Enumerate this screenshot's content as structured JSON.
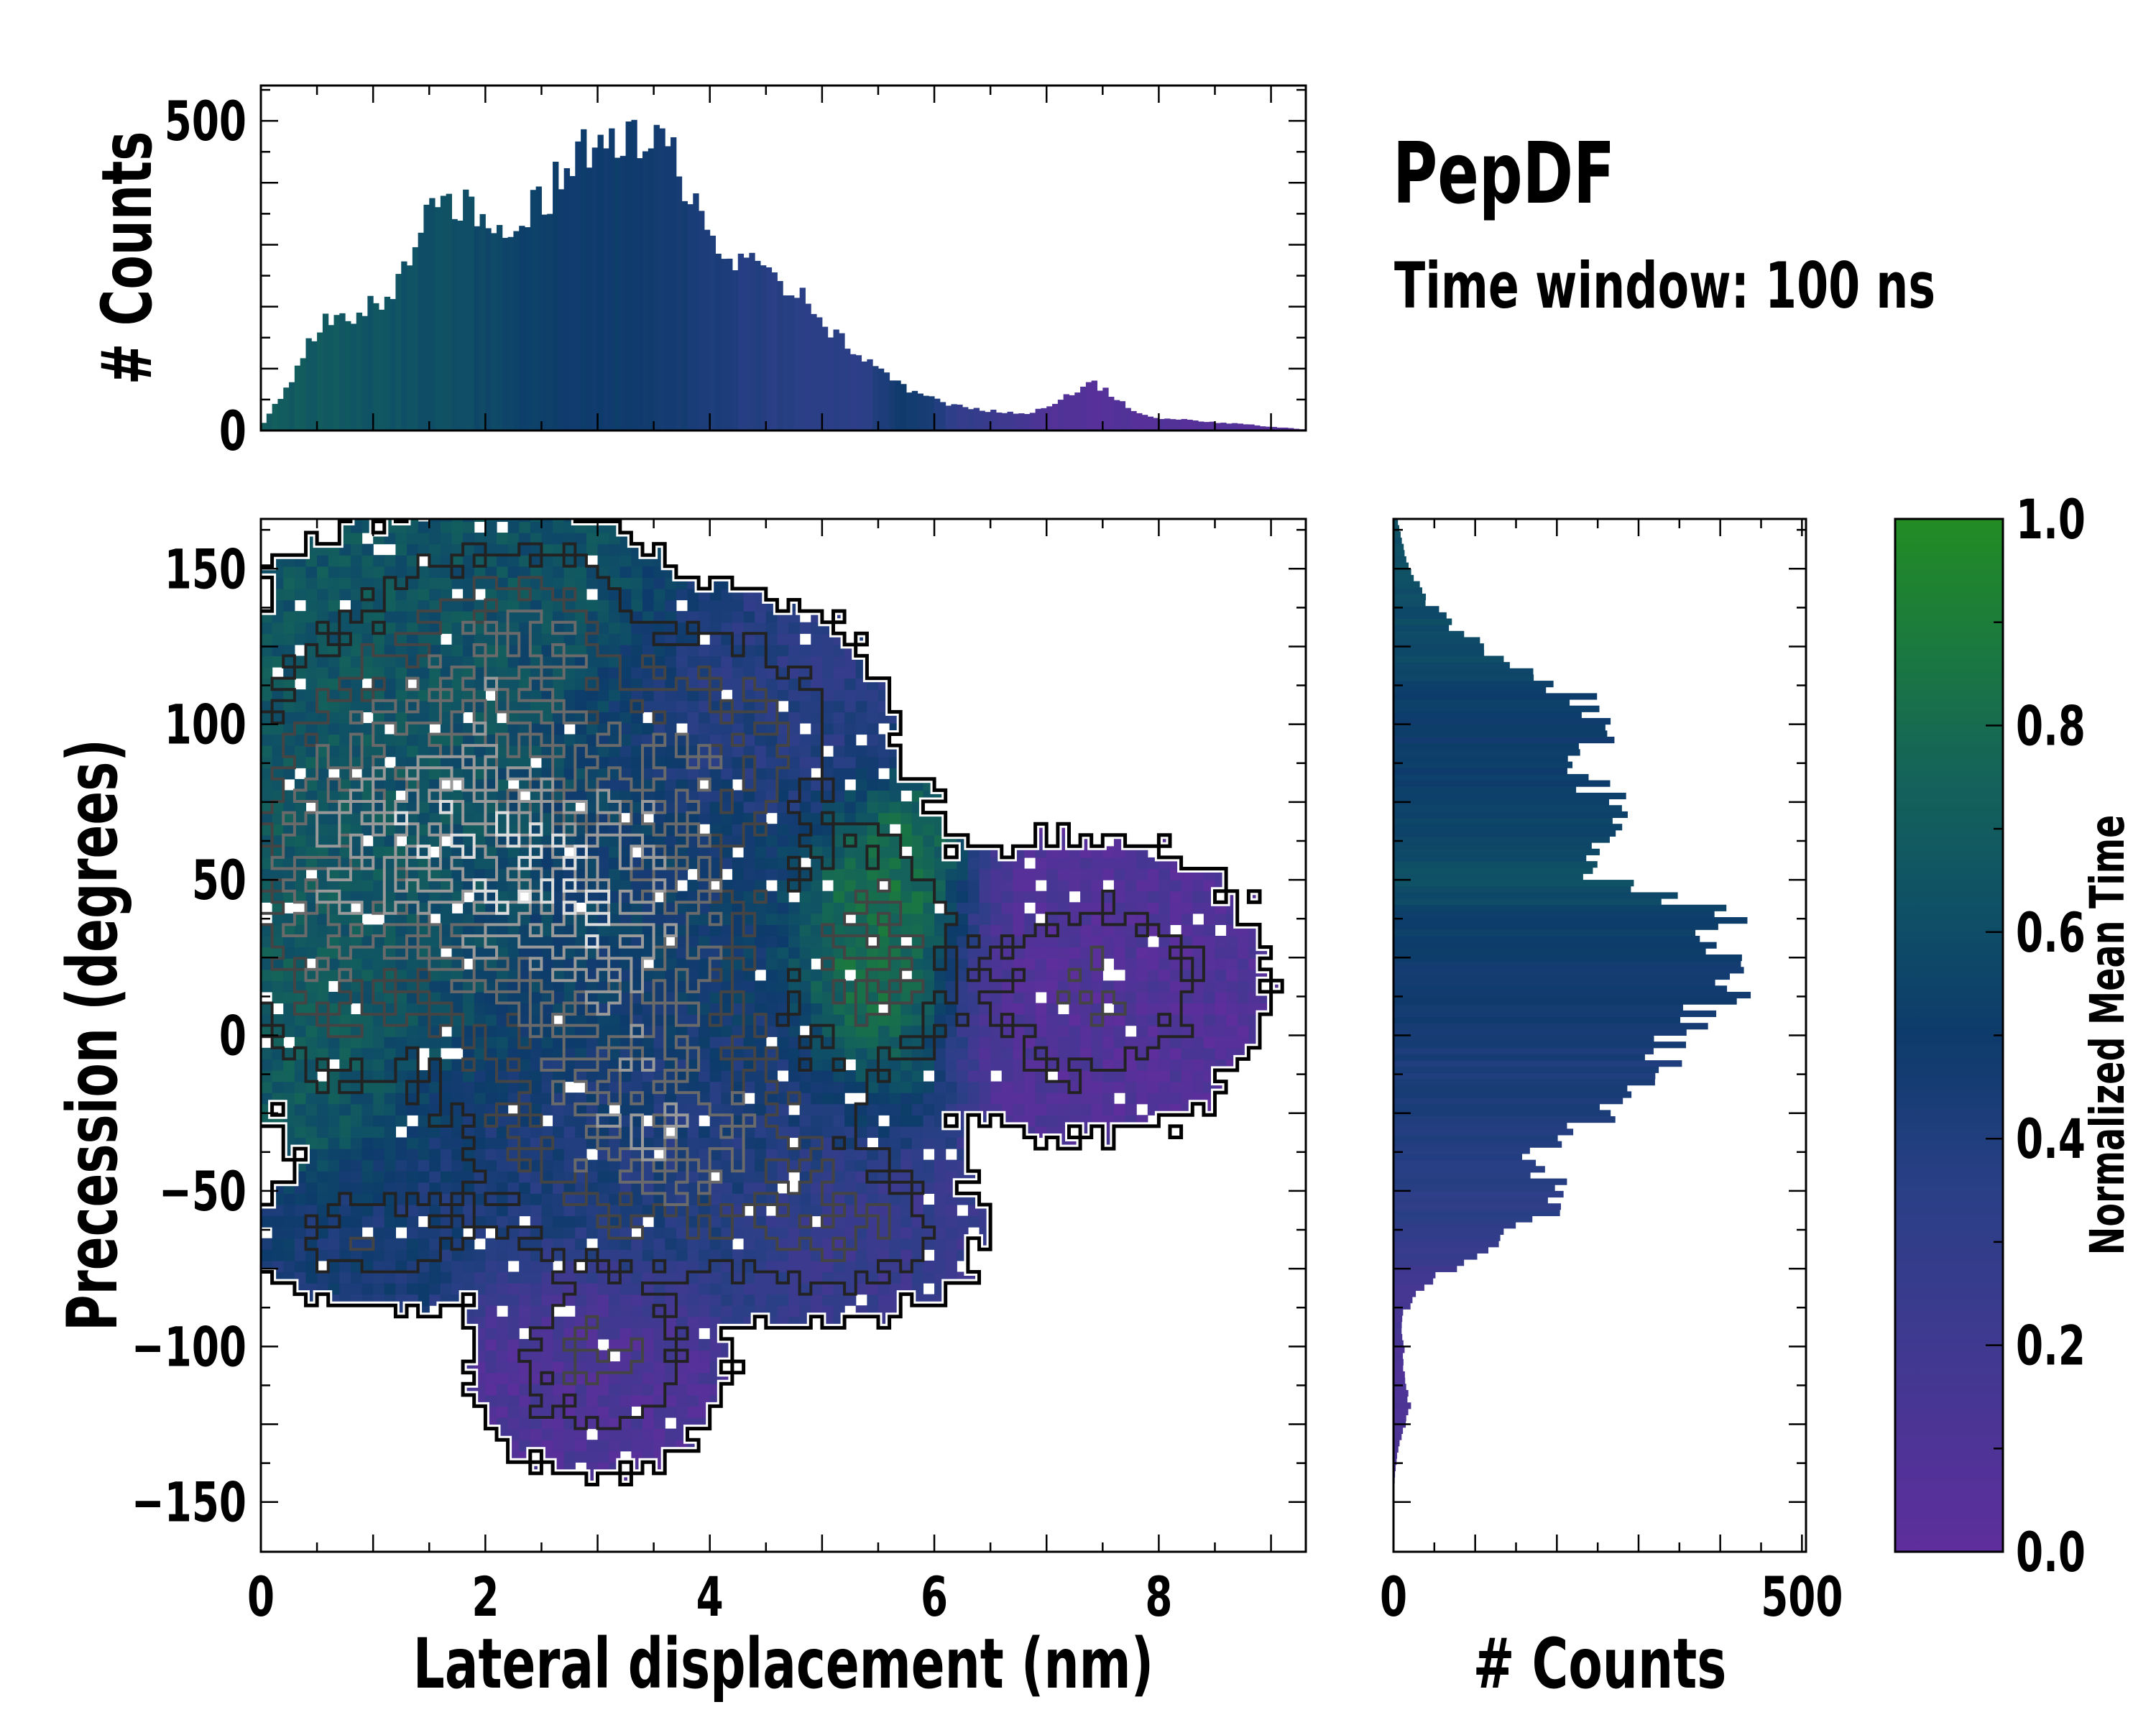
{
  "title": "PepDF",
  "subtitle": "Time window: 100 ns",
  "colormap": [
    [
      0.0,
      "#5e2e9c"
    ],
    [
      0.2,
      "#3f3990"
    ],
    [
      0.35,
      "#2a3f86"
    ],
    [
      0.5,
      "#0d3b6b"
    ],
    [
      0.62,
      "#0f5066"
    ],
    [
      0.75,
      "#14635a"
    ],
    [
      0.88,
      "#1b7a3e"
    ],
    [
      1.0,
      "#238c24"
    ]
  ],
  "chart_data": [
    {
      "type": "heatmap",
      "name": "main",
      "xlabel": "Lateral displacement (nm)",
      "ylabel": "Precession (degrees)",
      "xlim": [
        0,
        9.31
      ],
      "ylim": [
        -166,
        166
      ],
      "xticks": [
        0,
        2,
        4,
        6,
        8
      ],
      "xtick_labels": [
        "0",
        "2",
        "4",
        "6",
        "8"
      ],
      "yticks": [
        150,
        100,
        50,
        0,
        -50,
        -100,
        -150
      ],
      "ytick_labels": [
        "150",
        "100",
        "50",
        "0",
        "−50",
        "−100",
        "−150"
      ],
      "cell": [
        0.1,
        3.6
      ],
      "color_value": "normalized mean time",
      "density_components": [
        {
          "x": 1.5,
          "y": 70,
          "sx": 0.9,
          "sy": 42,
          "w": 1.0,
          "t": 0.66
        },
        {
          "x": 3.2,
          "y": 40,
          "sx": 0.9,
          "sy": 38,
          "w": 1.0,
          "t": 0.5
        },
        {
          "x": 2.4,
          "y": 130,
          "sx": 0.6,
          "sy": 18,
          "w": 0.55,
          "t": 0.62
        },
        {
          "x": 4.2,
          "y": 100,
          "sx": 0.7,
          "sy": 20,
          "w": 0.45,
          "t": 0.33
        },
        {
          "x": 5.5,
          "y": 28,
          "sx": 0.4,
          "sy": 24,
          "w": 0.55,
          "t": 0.88
        },
        {
          "x": 7.4,
          "y": 15,
          "sx": 0.8,
          "sy": 24,
          "w": 0.45,
          "t": 0.08
        },
        {
          "x": 3.0,
          "y": -105,
          "sx": 0.55,
          "sy": 18,
          "w": 0.5,
          "t": 0.1
        },
        {
          "x": 3.6,
          "y": -35,
          "sx": 1.0,
          "sy": 24,
          "w": 0.8,
          "t": 0.4
        },
        {
          "x": 1.0,
          "y": -65,
          "sx": 0.6,
          "sy": 11,
          "w": 0.4,
          "t": 0.45
        },
        {
          "x": 5.2,
          "y": -62,
          "sx": 0.6,
          "sy": 14,
          "w": 0.45,
          "t": 0.22
        },
        {
          "x": 0.5,
          "y": 40,
          "sx": 0.4,
          "sy": 35,
          "w": 0.5,
          "t": 0.7
        }
      ],
      "contour_levels": [
        {
          "level": 0.06,
          "color": "#000000"
        },
        {
          "level": 0.25,
          "color": "#222222"
        },
        {
          "level": 0.5,
          "color": "#444444"
        },
        {
          "level": 0.8,
          "color": "#6a6a6a"
        },
        {
          "level": 1.1,
          "color": "#999999"
        },
        {
          "level": 1.4,
          "color": "#dddddd"
        }
      ]
    },
    {
      "type": "bar",
      "name": "top-histogram",
      "ylabel": "# Counts",
      "xlim": [
        0,
        9.31
      ],
      "ylim": [
        0,
        557
      ],
      "yticks": [
        0,
        500
      ],
      "ytick_labels": [
        "0",
        "500"
      ],
      "bin_width": 0.05,
      "x": [
        0.0,
        0.2,
        0.4,
        0.6,
        0.8,
        1.0,
        1.2,
        1.4,
        1.6,
        1.8,
        2.0,
        2.2,
        2.4,
        2.6,
        2.8,
        3.0,
        3.2,
        3.4,
        3.6,
        3.8,
        4.0,
        4.2,
        4.4,
        4.6,
        4.8,
        5.0,
        5.2,
        5.4,
        5.6,
        5.8,
        6.0,
        6.2,
        6.4,
        6.6,
        6.8,
        7.0,
        7.2,
        7.4,
        7.6,
        7.8,
        8.0,
        8.2,
        8.4,
        8.6,
        8.8,
        9.0,
        9.3
      ],
      "values": [
        5,
        60,
        130,
        180,
        190,
        200,
        240,
        300,
        385,
        360,
        330,
        300,
        350,
        390,
        430,
        490,
        450,
        460,
        465,
        400,
        320,
        270,
        260,
        240,
        220,
        180,
        140,
        110,
        90,
        60,
        50,
        40,
        35,
        30,
        25,
        40,
        60,
        78,
        55,
        30,
        20,
        18,
        15,
        12,
        10,
        6,
        2
      ],
      "mean_time": [
        0.7,
        0.7,
        0.68,
        0.68,
        0.66,
        0.65,
        0.64,
        0.63,
        0.62,
        0.6,
        0.58,
        0.55,
        0.53,
        0.52,
        0.5,
        0.5,
        0.5,
        0.48,
        0.47,
        0.45,
        0.42,
        0.4,
        0.38,
        0.36,
        0.35,
        0.34,
        0.33,
        0.35,
        0.45,
        0.5,
        0.4,
        0.3,
        0.25,
        0.2,
        0.15,
        0.1,
        0.07,
        0.06,
        0.06,
        0.06,
        0.07,
        0.07,
        0.06,
        0.06,
        0.05,
        0.05,
        0.05
      ]
    },
    {
      "type": "bar",
      "name": "right-histogram",
      "orientation": "horizontal",
      "xlabel": "# Counts",
      "xlim": [
        0,
        505
      ],
      "ylim": [
        -166,
        166
      ],
      "xticks": [
        0,
        500
      ],
      "xtick_labels": [
        "0",
        "500"
      ],
      "bin_width": 2,
      "y": [
        165,
        160,
        150,
        140,
        130,
        120,
        110,
        100,
        90,
        80,
        70,
        60,
        50,
        40,
        30,
        20,
        10,
        0,
        -10,
        -20,
        -30,
        -40,
        -50,
        -60,
        -70,
        -80,
        -90,
        -100,
        -110,
        -120,
        -130,
        -140,
        -150
      ],
      "values": [
        5,
        10,
        20,
        40,
        80,
        140,
        220,
        260,
        230,
        240,
        290,
        230,
        250,
        390,
        420,
        450,
        370,
        350,
        330,
        300,
        220,
        160,
        210,
        170,
        100,
        40,
        10,
        12,
        14,
        20,
        8,
        2,
        0
      ],
      "mean_time": [
        0.62,
        0.62,
        0.62,
        0.6,
        0.6,
        0.58,
        0.52,
        0.5,
        0.5,
        0.52,
        0.55,
        0.58,
        0.62,
        0.55,
        0.5,
        0.48,
        0.47,
        0.45,
        0.42,
        0.42,
        0.4,
        0.38,
        0.35,
        0.32,
        0.25,
        0.18,
        0.15,
        0.12,
        0.1,
        0.1,
        0.1,
        0.1,
        0.1
      ]
    },
    {
      "type": "colorbar",
      "name": "colorbar",
      "label": "Normalized Mean Time",
      "range": [
        0,
        1
      ],
      "ticks": [
        0.0,
        0.2,
        0.4,
        0.6,
        0.8,
        1.0
      ],
      "tick_labels": [
        "0.0",
        "0.2",
        "0.4",
        "0.6",
        "0.8",
        "1.0"
      ]
    }
  ]
}
